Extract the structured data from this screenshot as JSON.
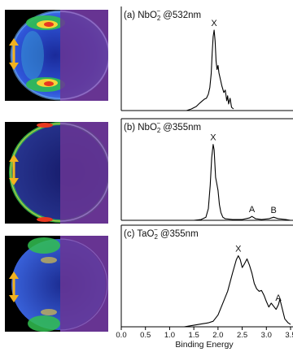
{
  "chart_data": [
    {
      "type": "line",
      "panel": "(a)",
      "title_html": [
        "(a) NbO",
        "2",
        "−",
        " @532nm"
      ],
      "peaks": [
        {
          "label": "X",
          "x": 1.92
        }
      ],
      "x": [
        1.35,
        1.45,
        1.55,
        1.62,
        1.68,
        1.72,
        1.76,
        1.8,
        1.83,
        1.86,
        1.88,
        1.9,
        1.92,
        1.94,
        1.96,
        1.98,
        2.0,
        2.02,
        2.05,
        2.08,
        2.12,
        2.15,
        2.18,
        2.2,
        2.22,
        2.25,
        2.28,
        2.32
      ],
      "y": [
        0.0,
        0.02,
        0.05,
        0.09,
        0.12,
        0.14,
        0.15,
        0.2,
        0.28,
        0.45,
        0.7,
        0.9,
        0.98,
        0.85,
        0.6,
        0.5,
        0.55,
        0.46,
        0.38,
        0.3,
        0.22,
        0.25,
        0.12,
        0.18,
        0.08,
        0.15,
        0.04,
        0.02
      ],
      "xlim": [
        0.0,
        3.5
      ],
      "ylim": [
        0,
        1.05
      ]
    },
    {
      "type": "line",
      "panel": "(b)",
      "title_html": [
        "(b) NbO",
        "2",
        "−",
        " @355nm"
      ],
      "peaks": [
        {
          "label": "X",
          "x": 1.9
        },
        {
          "label": "A",
          "x": 2.7
        },
        {
          "label": "B",
          "x": 3.15
        }
      ],
      "x": [
        1.5,
        1.65,
        1.75,
        1.8,
        1.84,
        1.87,
        1.9,
        1.92,
        1.95,
        1.98,
        2.0,
        2.03,
        2.06,
        2.1,
        2.15,
        2.3,
        2.5,
        2.65,
        2.7,
        2.78,
        2.9,
        3.05,
        3.15,
        3.25,
        3.4,
        3.5
      ],
      "y": [
        0.0,
        0.01,
        0.04,
        0.15,
        0.45,
        0.8,
        0.97,
        0.9,
        0.55,
        0.45,
        0.38,
        0.2,
        0.1,
        0.04,
        0.02,
        0.01,
        0.01,
        0.03,
        0.05,
        0.02,
        0.01,
        0.02,
        0.04,
        0.02,
        0.01,
        0.0
      ],
      "xlim": [
        0.0,
        3.5
      ],
      "ylim": [
        0,
        1.05
      ]
    },
    {
      "type": "line",
      "panel": "(c)",
      "title_html": [
        "(c) TaO",
        "2",
        "−",
        " @355nm"
      ],
      "peaks": [
        {
          "label": "X",
          "x": 2.42
        },
        {
          "label": "A",
          "x": 3.25
        }
      ],
      "x": [
        1.3,
        1.5,
        1.7,
        1.8,
        1.9,
        2.0,
        2.1,
        2.2,
        2.3,
        2.38,
        2.42,
        2.46,
        2.5,
        2.55,
        2.6,
        2.65,
        2.7,
        2.75,
        2.8,
        2.85,
        2.9,
        2.95,
        3.0,
        3.05,
        3.1,
        3.15,
        3.2,
        3.25,
        3.28,
        3.32,
        3.38,
        3.45,
        3.5
      ],
      "y": [
        0.0,
        0.02,
        0.04,
        0.05,
        0.07,
        0.15,
        0.3,
        0.45,
        0.68,
        0.85,
        0.9,
        0.85,
        0.75,
        0.8,
        0.86,
        0.78,
        0.68,
        0.55,
        0.48,
        0.45,
        0.46,
        0.4,
        0.32,
        0.25,
        0.3,
        0.26,
        0.22,
        0.28,
        0.35,
        0.25,
        0.1,
        0.05,
        0.03
      ],
      "xlim": [
        0.0,
        3.5
      ],
      "ylim": [
        0,
        1.05
      ]
    }
  ],
  "axis": {
    "x_ticks": [
      "0.0",
      "0.5",
      "1.0",
      "1.5",
      "2.0",
      "2.5",
      "3.0",
      "3.5"
    ],
    "xlabel": "Binding Energy"
  },
  "colors": {
    "line": "#000000",
    "image_bg_left": "#000000",
    "image_bg_right": "#5a2a80",
    "arrow": "#f2b21e"
  }
}
